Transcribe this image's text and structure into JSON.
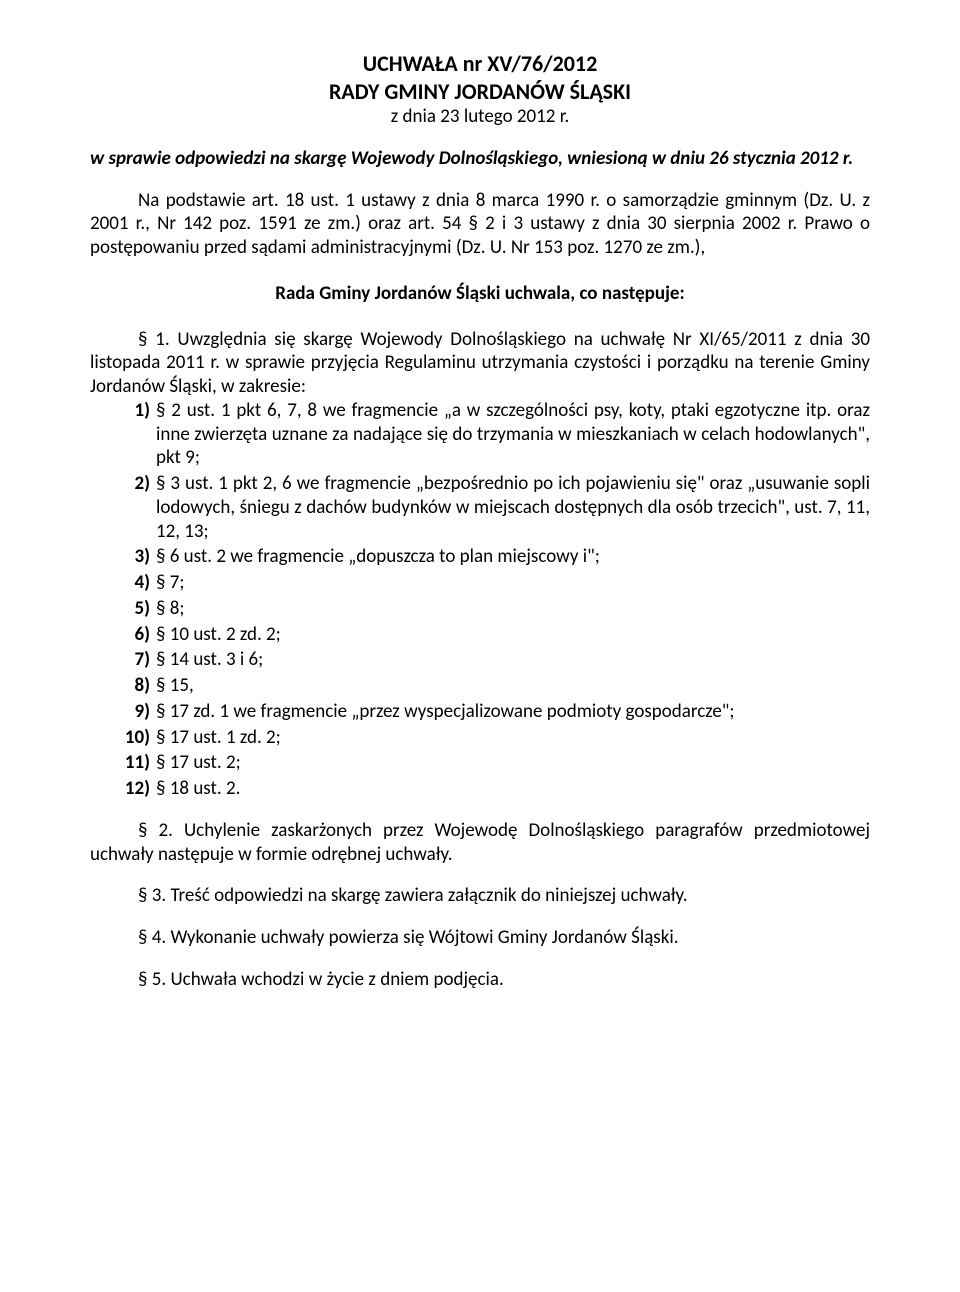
{
  "header": {
    "title_line1": "UCHWAŁA nr XV/76/2012",
    "title_line2": "RADY GMINY JORDANÓW ŚLĄSKI",
    "date_line": "z dnia 23 lutego 2012 r."
  },
  "subject": "w sprawie odpowiedzi na skargę Wojewody Dolnośląskiego, wniesioną w dniu 26 stycznia 2012 r.",
  "basis": "Na podstawie art. 18 ust. 1 ustawy z dnia 8 marca 1990 r. o samorządzie gminnym (Dz. U. z 2001 r., Nr 142 poz. 1591 ze zm.) oraz art. 54 § 2 i 3 ustawy z dnia 30 sierpnia 2002 r. Prawo o postępowaniu przed sądami administracyjnymi (Dz. U. Nr 153 poz. 1270 ze zm.),",
  "resolution_line": "Rada Gminy Jordanów Śląski uchwala, co następuje:",
  "s1_intro": "§ 1. Uwzględnia się skargę Wojewody Dolnośląskiego na uchwałę Nr XI/65/2011 z dnia 30 listopada 2011 r. w sprawie przyjęcia Regulaminu utrzymania czystości i porządku na terenie Gminy Jordanów Śląski, w zakresie:",
  "s1_items": [
    {
      "n": "1)",
      "t": "§ 2 ust. 1 pkt 6, 7, 8 we fragmencie „a w szczególności psy, koty, ptaki egzotyczne itp. oraz inne zwierzęta uznane za nadające się do trzymania w mieszkaniach w celach hodowlanych\", pkt 9;"
    },
    {
      "n": "2)",
      "t": "§ 3 ust. 1 pkt 2, 6 we fragmencie „bezpośrednio po ich pojawieniu się\" oraz „usuwanie sopli lodowych, śniegu z dachów budynków w miejscach dostępnych dla osób trzecich\", ust. 7, 11, 12, 13;"
    },
    {
      "n": "3)",
      "t": "§ 6 ust. 2 we fragmencie „dopuszcza to plan miejscowy i\";"
    },
    {
      "n": "4)",
      "t": "§ 7;"
    },
    {
      "n": "5)",
      "t": "§ 8;"
    },
    {
      "n": "6)",
      "t": "§ 10 ust. 2 zd. 2;"
    },
    {
      "n": "7)",
      "t": "§ 14 ust. 3 i 6;"
    },
    {
      "n": "8)",
      "t": "§ 15,"
    },
    {
      "n": "9)",
      "t": "§ 17 zd. 1 we fragmencie „przez wyspecjalizowane podmioty gospodarcze\";"
    },
    {
      "n": "10)",
      "t": "§ 17 ust. 1 zd. 2;"
    },
    {
      "n": "11)",
      "t": "§ 17 ust. 2;"
    },
    {
      "n": "12)",
      "t": "§ 18 ust. 2."
    }
  ],
  "s2": "§ 2. Uchylenie zaskarżonych przez Wojewodę Dolnośląskiego paragrafów przedmiotowej uchwały następuje w formie odrębnej uchwały.",
  "s3": "§ 3. Treść odpowiedzi na skargę zawiera załącznik do niniejszej uchwały.",
  "s4": "§ 4. Wykonanie uchwały powierza się Wójtowi Gminy Jordanów Śląski.",
  "s5": "§ 5. Uchwała wchodzi w życie z dniem podjęcia."
}
